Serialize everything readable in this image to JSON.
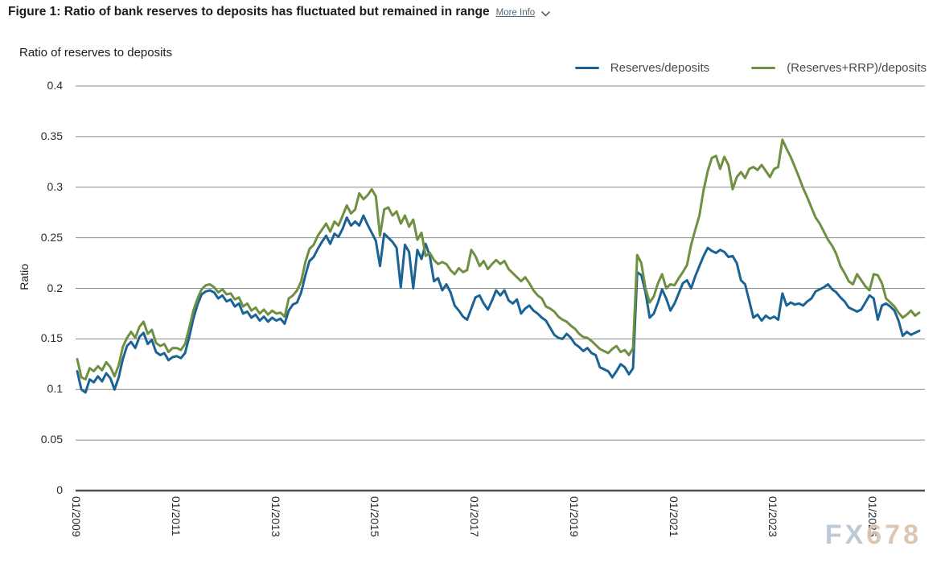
{
  "header": {
    "title": "Figure 1: Ratio of bank reserves to deposits has fluctuated but remained in range",
    "more_info_label": "More Info"
  },
  "chart": {
    "subtitle": "Ratio of reserves to deposits",
    "y_axis_label": "Ratio"
  },
  "legend": [
    {
      "label": "Reserves/deposits",
      "color": "#1a6394"
    },
    {
      "label": "(Reserves+RRP)/deposits",
      "color": "#6f8f41"
    }
  ],
  "watermark": {
    "part1": "FX",
    "part2": "678"
  },
  "chart_data": {
    "type": "line",
    "title": "Ratio of bank reserves to deposits has fluctuated but remained in range",
    "subtitle": "Ratio of reserves to deposits",
    "ylabel": "Ratio",
    "ylim": [
      0,
      0.4
    ],
    "y_ticks": [
      0,
      0.05,
      0.1,
      0.15,
      0.2,
      0.25,
      0.3,
      0.35,
      0.4
    ],
    "grid": "horizontal",
    "legend_position": "top-right",
    "frequency": "monthly",
    "x_start": "2009-01",
    "x_end": "2025-12",
    "x_tick_labels": [
      "01/2009",
      "01/2011",
      "01/2013",
      "01/2015",
      "01/2017",
      "01/2019",
      "01/2021",
      "01/2023",
      "01/2025"
    ],
    "x_tick_interval_months": 24,
    "series": [
      {
        "name": "Reserves/deposits",
        "color": "#1a6394",
        "values": [
          0.118,
          0.1,
          0.097,
          0.11,
          0.107,
          0.113,
          0.108,
          0.116,
          0.111,
          0.1,
          0.112,
          0.13,
          0.143,
          0.147,
          0.141,
          0.152,
          0.156,
          0.145,
          0.149,
          0.137,
          0.134,
          0.136,
          0.129,
          0.132,
          0.133,
          0.131,
          0.136,
          0.152,
          0.17,
          0.184,
          0.194,
          0.197,
          0.198,
          0.196,
          0.19,
          0.193,
          0.187,
          0.189,
          0.182,
          0.185,
          0.175,
          0.177,
          0.171,
          0.174,
          0.168,
          0.172,
          0.167,
          0.171,
          0.168,
          0.17,
          0.165,
          0.178,
          0.184,
          0.186,
          0.196,
          0.213,
          0.227,
          0.231,
          0.239,
          0.246,
          0.252,
          0.244,
          0.254,
          0.251,
          0.259,
          0.27,
          0.262,
          0.266,
          0.262,
          0.272,
          0.263,
          0.255,
          0.247,
          0.222,
          0.254,
          0.25,
          0.246,
          0.24,
          0.201,
          0.243,
          0.236,
          0.2,
          0.238,
          0.229,
          0.244,
          0.232,
          0.207,
          0.21,
          0.198,
          0.204,
          0.196,
          0.183,
          0.178,
          0.172,
          0.169,
          0.18,
          0.191,
          0.193,
          0.185,
          0.179,
          0.188,
          0.198,
          0.193,
          0.198,
          0.188,
          0.185,
          0.189,
          0.175,
          0.18,
          0.183,
          0.178,
          0.175,
          0.171,
          0.168,
          0.161,
          0.154,
          0.151,
          0.15,
          0.155,
          0.151,
          0.145,
          0.142,
          0.138,
          0.141,
          0.136,
          0.134,
          0.122,
          0.12,
          0.118,
          0.112,
          0.118,
          0.125,
          0.122,
          0.115,
          0.121,
          0.216,
          0.213,
          0.196,
          0.171,
          0.175,
          0.186,
          0.199,
          0.19,
          0.178,
          0.185,
          0.195,
          0.205,
          0.208,
          0.2,
          0.212,
          0.222,
          0.232,
          0.24,
          0.237,
          0.235,
          0.238,
          0.236,
          0.231,
          0.232,
          0.225,
          0.208,
          0.204,
          0.188,
          0.171,
          0.174,
          0.168,
          0.173,
          0.17,
          0.172,
          0.169,
          0.195,
          0.183,
          0.186,
          0.184,
          0.185,
          0.183,
          0.187,
          0.19,
          0.197,
          0.199,
          0.201,
          0.204,
          0.199,
          0.196,
          0.191,
          0.187,
          0.181,
          0.179,
          0.177,
          0.179,
          0.186,
          0.193,
          0.19,
          0.169,
          0.183,
          0.185,
          0.182,
          0.178,
          0.168,
          0.153,
          0.157,
          0.154,
          0.156,
          0.158
        ]
      },
      {
        "name": "(Reserves+RRP)/deposits",
        "color": "#6f8f41",
        "values": [
          0.13,
          0.112,
          0.11,
          0.121,
          0.118,
          0.123,
          0.119,
          0.127,
          0.122,
          0.113,
          0.124,
          0.142,
          0.151,
          0.157,
          0.151,
          0.162,
          0.167,
          0.155,
          0.159,
          0.146,
          0.143,
          0.145,
          0.137,
          0.141,
          0.141,
          0.139,
          0.145,
          0.161,
          0.178,
          0.19,
          0.199,
          0.203,
          0.204,
          0.201,
          0.196,
          0.199,
          0.194,
          0.195,
          0.189,
          0.191,
          0.182,
          0.185,
          0.178,
          0.181,
          0.175,
          0.179,
          0.174,
          0.178,
          0.175,
          0.176,
          0.172,
          0.19,
          0.193,
          0.198,
          0.207,
          0.226,
          0.239,
          0.243,
          0.252,
          0.258,
          0.264,
          0.256,
          0.266,
          0.262,
          0.272,
          0.282,
          0.274,
          0.278,
          0.294,
          0.288,
          0.292,
          0.298,
          0.291,
          0.252,
          0.278,
          0.28,
          0.272,
          0.276,
          0.264,
          0.272,
          0.261,
          0.268,
          0.248,
          0.255,
          0.232,
          0.235,
          0.228,
          0.224,
          0.226,
          0.224,
          0.218,
          0.214,
          0.22,
          0.216,
          0.218,
          0.238,
          0.232,
          0.222,
          0.227,
          0.219,
          0.224,
          0.228,
          0.224,
          0.227,
          0.219,
          0.215,
          0.211,
          0.207,
          0.211,
          0.205,
          0.198,
          0.193,
          0.19,
          0.182,
          0.18,
          0.177,
          0.172,
          0.169,
          0.167,
          0.163,
          0.16,
          0.155,
          0.152,
          0.151,
          0.148,
          0.144,
          0.14,
          0.138,
          0.136,
          0.14,
          0.143,
          0.137,
          0.139,
          0.134,
          0.141,
          0.233,
          0.225,
          0.2,
          0.186,
          0.192,
          0.205,
          0.214,
          0.2,
          0.204,
          0.203,
          0.21,
          0.216,
          0.223,
          0.243,
          0.258,
          0.272,
          0.297,
          0.316,
          0.329,
          0.331,
          0.318,
          0.33,
          0.322,
          0.298,
          0.31,
          0.315,
          0.309,
          0.318,
          0.32,
          0.317,
          0.322,
          0.316,
          0.31,
          0.318,
          0.32,
          0.347,
          0.338,
          0.33,
          0.32,
          0.31,
          0.299,
          0.29,
          0.28,
          0.27,
          0.264,
          0.256,
          0.248,
          0.242,
          0.234,
          0.222,
          0.215,
          0.207,
          0.204,
          0.214,
          0.208,
          0.202,
          0.198,
          0.214,
          0.213,
          0.205,
          0.19,
          0.186,
          0.182,
          0.176,
          0.171,
          0.174,
          0.178,
          0.173,
          0.176
        ]
      }
    ]
  }
}
